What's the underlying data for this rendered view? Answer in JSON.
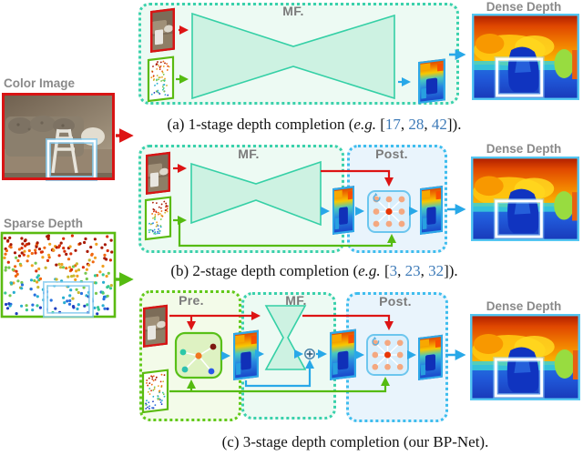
{
  "figure": {
    "left_inputs": {
      "color_label": "Color Image",
      "sparse_label": "Sparse Depth"
    },
    "panel_a": {
      "mf_label": "MF.",
      "dense_label": "Dense Depth"
    },
    "panel_b": {
      "mf_label": "MF.",
      "post_label": "Post.",
      "dense_label": "Dense Depth"
    },
    "panel_c": {
      "pre_label": "Pre.",
      "mf_label": "MF.",
      "post_label": "Post.",
      "dense_label": "Dense Depth"
    },
    "captions": {
      "a": [
        {
          "t": "(a) 1-stage depth completion ("
        },
        {
          "t": "e.g.",
          "s": "i"
        },
        {
          "t": " ["
        },
        {
          "t": "17",
          "s": "c"
        },
        {
          "t": ", "
        },
        {
          "t": "28",
          "s": "c"
        },
        {
          "t": ", "
        },
        {
          "t": "42",
          "s": "c"
        },
        {
          "t": "])."
        }
      ],
      "b": [
        {
          "t": "(b) 2-stage depth completion ("
        },
        {
          "t": "e.g.",
          "s": "i"
        },
        {
          "t": " ["
        },
        {
          "t": "3",
          "s": "c"
        },
        {
          "t": ", "
        },
        {
          "t": "23",
          "s": "c"
        },
        {
          "t": ", "
        },
        {
          "t": "32",
          "s": "c"
        },
        {
          "t": "])."
        }
      ],
      "c": [
        {
          "t": "(c) 3-stage depth completion (our BP-Net)."
        }
      ]
    },
    "colors": {
      "teal": "#3ad1ac",
      "green": "#62c91a",
      "blue": "#3ebdee",
      "red": "#dd1414",
      "cite_blue": "#3d7ab8"
    }
  }
}
